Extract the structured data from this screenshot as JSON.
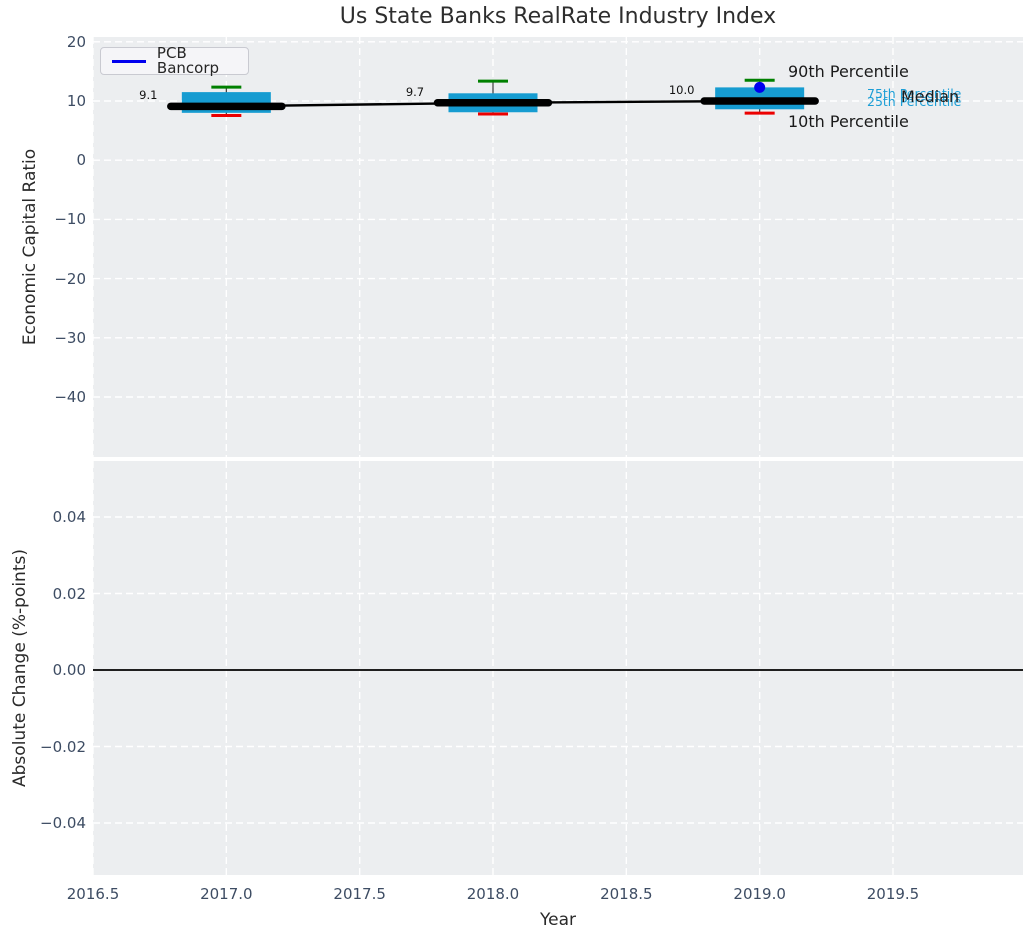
{
  "title": "Us State Banks RealRate Industry Index",
  "legend": {
    "label": "PCB Bancorp"
  },
  "colors": {
    "figure_bg": "#FFFFFF",
    "axes_bg": "#ECEEF0",
    "grid": "#FFFFFF",
    "tick_label": "#3D4C63",
    "box_fill": "#169CD1",
    "whisker": "#3A3A3A",
    "p90_cap": "#008000",
    "p10_cap": "#EC0000",
    "median_line": "#000000",
    "company_marker": "#0000EE",
    "zero_line": "#000000",
    "annotation_blue": "#1B9ED6",
    "annotation_dark": "#1A1A1A"
  },
  "chart_data": [
    {
      "type": "boxplot",
      "title": "Us State Banks RealRate Industry Index",
      "xlabel": "Year",
      "ylabel": "Economic Capital Ratio",
      "xlim": [
        2016.5,
        2020.0
      ],
      "ylim": [
        -50.5,
        21.0
      ],
      "grid": true,
      "legend_position": "upper left",
      "series": [
        {
          "name": "PCB Bancorp",
          "x": [
            2019
          ],
          "y": [
            12.3
          ]
        }
      ],
      "boxes": [
        {
          "year": 2017,
          "median": 9.1,
          "q1": 8.0,
          "q3": 11.5,
          "p10": 7.55,
          "p90": 12.35,
          "median_label": "9.1"
        },
        {
          "year": 2018,
          "median": 9.7,
          "q1": 8.1,
          "q3": 11.3,
          "p10": 7.8,
          "p90": 13.35,
          "median_label": "9.7"
        },
        {
          "year": 2019,
          "median": 10.0,
          "q1": 8.6,
          "q3": 12.3,
          "p10": 7.95,
          "p90": 13.5,
          "median_label": "10.0"
        }
      ],
      "yticks": [
        {
          "label": "20",
          "value": 20
        },
        {
          "label": "10",
          "value": 10
        },
        {
          "label": "0",
          "value": 0
        },
        {
          "label": "−10",
          "value": -10
        },
        {
          "label": "−20",
          "value": -20
        },
        {
          "label": "−30",
          "value": -30
        },
        {
          "label": "−40",
          "value": -40
        }
      ],
      "xticks": [
        {
          "label": "2016.5",
          "value": 2016.5
        },
        {
          "label": "2017.0",
          "value": 2017.0
        },
        {
          "label": "2017.5",
          "value": 2017.5
        },
        {
          "label": "2018.0",
          "value": 2018.0
        },
        {
          "label": "2018.5",
          "value": 2018.5
        },
        {
          "label": "2019.0",
          "value": 2019.0
        },
        {
          "label": "2019.5",
          "value": 2019.5
        }
      ],
      "annotations": [
        {
          "text": "90th Percentile",
          "style": "dark-large"
        },
        {
          "text": "75th Percentile",
          "style": "blue-small"
        },
        {
          "text": "25th Percentile",
          "style": "blue-small"
        },
        {
          "text": "Median",
          "style": "dark-large"
        },
        {
          "text": "10th Percentile",
          "style": "dark-large"
        }
      ]
    },
    {
      "type": "line",
      "xlabel": "Year",
      "ylabel": "Absolute Change (%-points)",
      "xlim": [
        2016.5,
        2020.0
      ],
      "ylim": [
        -0.054,
        0.055
      ],
      "grid": true,
      "zero_line": 0,
      "values": [],
      "yticks": [
        {
          "label": "0.04",
          "value": 0.04
        },
        {
          "label": "0.02",
          "value": 0.02
        },
        {
          "label": "0.00",
          "value": 0.0
        },
        {
          "label": "−0.02",
          "value": -0.02
        },
        {
          "label": "−0.04",
          "value": -0.04
        }
      ],
      "xticks": [
        {
          "label": "2016.5",
          "value": 2016.5
        },
        {
          "label": "2017.0",
          "value": 2017.0
        },
        {
          "label": "2017.5",
          "value": 2017.5
        },
        {
          "label": "2018.0",
          "value": 2018.0
        },
        {
          "label": "2018.5",
          "value": 2018.5
        },
        {
          "label": "2019.0",
          "value": 2019.0
        },
        {
          "label": "2019.5",
          "value": 2019.5
        }
      ]
    }
  ]
}
